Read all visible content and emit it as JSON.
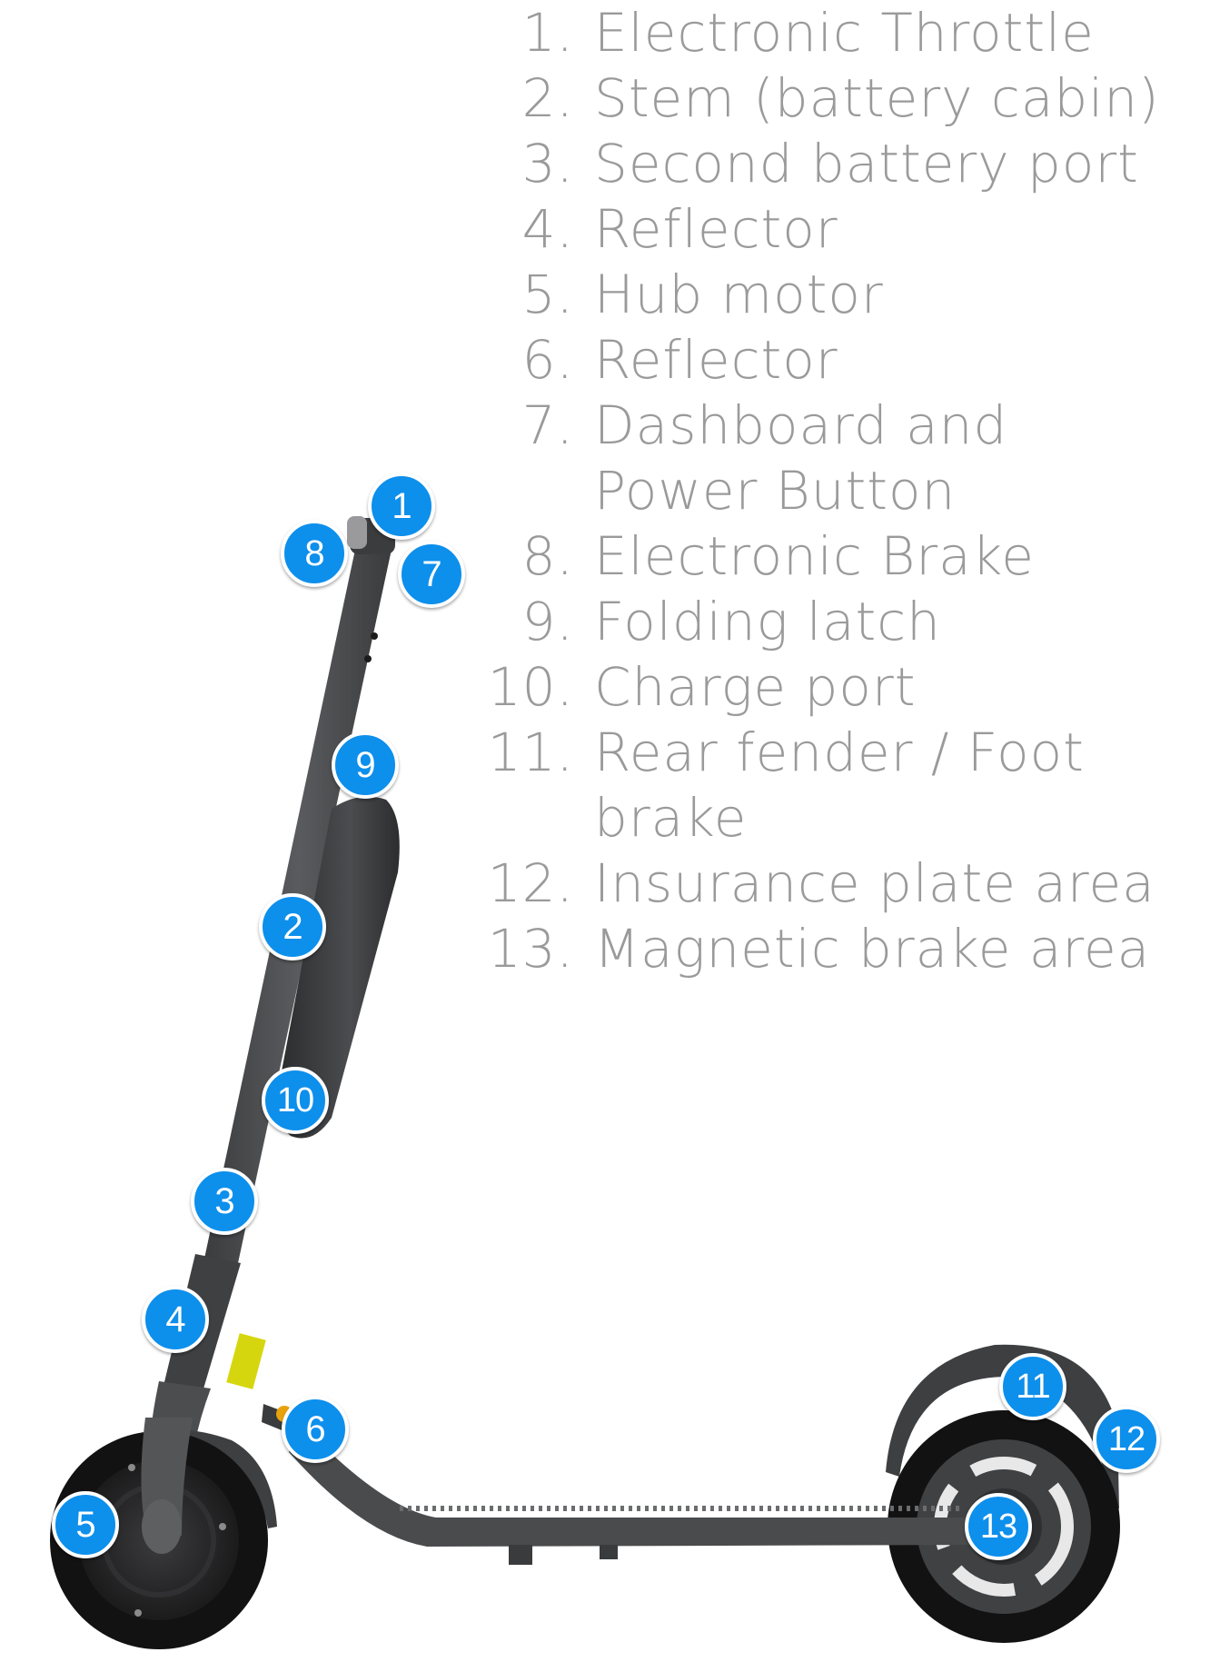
{
  "legend": [
    {
      "number": "1.",
      "label": "Electronic Throttle"
    },
    {
      "number": "2.",
      "label": "Stem (battery cabin)"
    },
    {
      "number": "3.",
      "label": "Second battery port"
    },
    {
      "number": "4.",
      "label": "Reflector"
    },
    {
      "number": "5.",
      "label": "Hub motor"
    },
    {
      "number": "6.",
      "label": "Reflector"
    },
    {
      "number": "7.",
      "label": "Dashboard and Power Button"
    },
    {
      "number": "8.",
      "label": "Electronic Brake"
    },
    {
      "number": "9.",
      "label": "Folding latch"
    },
    {
      "number": "10.",
      "label": "Charge port"
    },
    {
      "number": "11.",
      "label": "Rear fender / Foot brake"
    },
    {
      "number": "12.",
      "label": "Insurance plate area"
    },
    {
      "number": "13.",
      "label": "Magnetic brake area"
    }
  ],
  "callouts": [
    "1",
    "2",
    "3",
    "4",
    "5",
    "6",
    "7",
    "8",
    "9",
    "10",
    "11",
    "12",
    "13"
  ],
  "colors": {
    "callout_fill": "#0d8fec",
    "legend_text": "#9a9a9a",
    "scooter_body": "#4a4b4d",
    "tire": "#111111"
  }
}
